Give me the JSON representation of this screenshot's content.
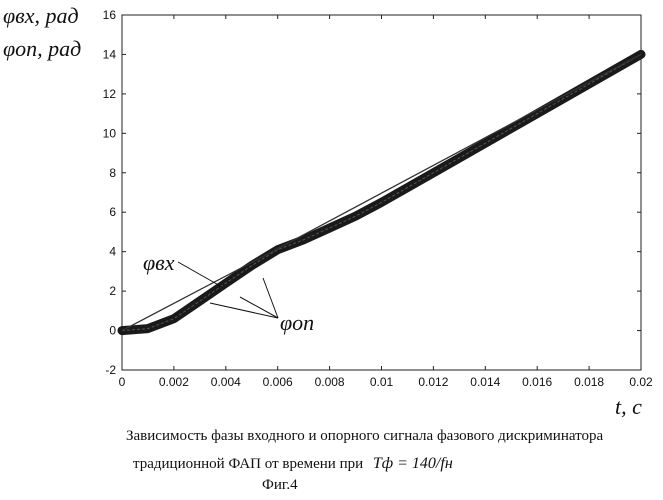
{
  "chart_data": {
    "type": "line",
    "y_label_line1": "φвх, рад",
    "y_label_line2": "φоп, рад",
    "x_label": "t, c",
    "xlim": [
      0,
      0.02
    ],
    "ylim": [
      -2,
      16
    ],
    "x_ticks": [
      "0",
      "0.002",
      "0.004",
      "0.006",
      "0.008",
      "0.01",
      "0.012",
      "0.014",
      "0.016",
      "0.018",
      "0.02"
    ],
    "y_ticks": [
      "-2",
      "0",
      "2",
      "4",
      "6",
      "8",
      "10",
      "12",
      "14",
      "16"
    ],
    "grid": false,
    "series": [
      {
        "name": "φвх",
        "x": [
          0,
          0.0055,
          0.02
        ],
        "y": [
          0,
          3.8,
          14.0
        ]
      },
      {
        "name": "φоп",
        "x": [
          0,
          0.001,
          0.002,
          0.003,
          0.004,
          0.005,
          0.006,
          0.007,
          0.008,
          0.009,
          0.01,
          0.012,
          0.014,
          0.016,
          0.018,
          0.02
        ],
        "y": [
          0,
          0.1,
          0.6,
          1.5,
          2.4,
          3.3,
          4.1,
          4.6,
          5.2,
          5.8,
          6.5,
          8.0,
          9.5,
          11.0,
          12.5,
          14.0
        ]
      }
    ],
    "annotations": {
      "input_label": "φвх",
      "ref_label": "φоп"
    }
  },
  "caption": {
    "line1": "Зависимость фазы входного и опорного сигнала фазового дискриминатора",
    "line2": "традиционной ФАП от времени при",
    "formula": "Tф = 140/fн",
    "figure": "Фиг.4"
  }
}
